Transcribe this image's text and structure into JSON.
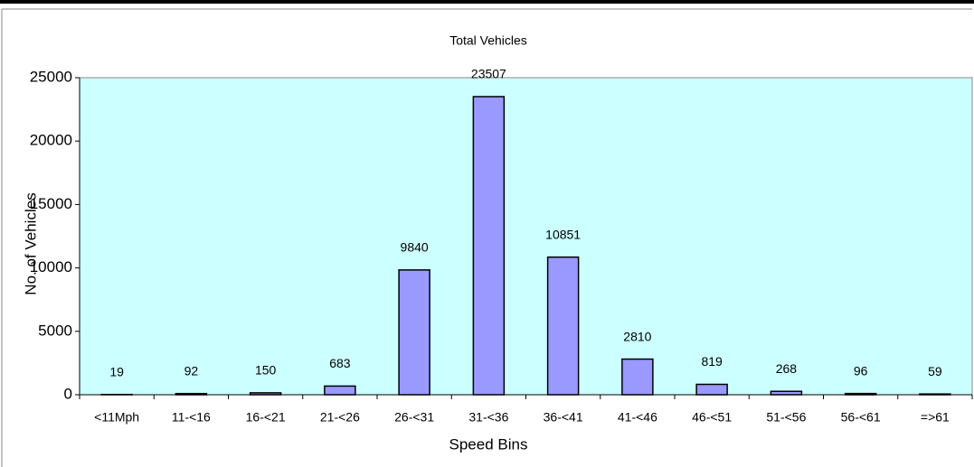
{
  "chart_data": {
    "type": "bar",
    "title": "Total Vehicles",
    "x_label": "Speed Bins",
    "y_label": "No. of Vehicles",
    "categories": [
      "<11Mph",
      "11-<16",
      "16-<21",
      "21-<26",
      "26-<31",
      "31-<36",
      "36-<41",
      "41-<46",
      "46-<51",
      "51-<56",
      "56-<61",
      "=>61"
    ],
    "values": [
      19,
      92,
      150,
      683,
      9840,
      23507,
      10851,
      2810,
      819,
      268,
      96,
      59
    ],
    "color": "#9999ff",
    "plot_background": "#ccffff",
    "ylim": [
      0,
      25000
    ],
    "yticks": [
      0,
      5000,
      10000,
      15000,
      20000,
      25000
    ],
    "grid": false
  }
}
